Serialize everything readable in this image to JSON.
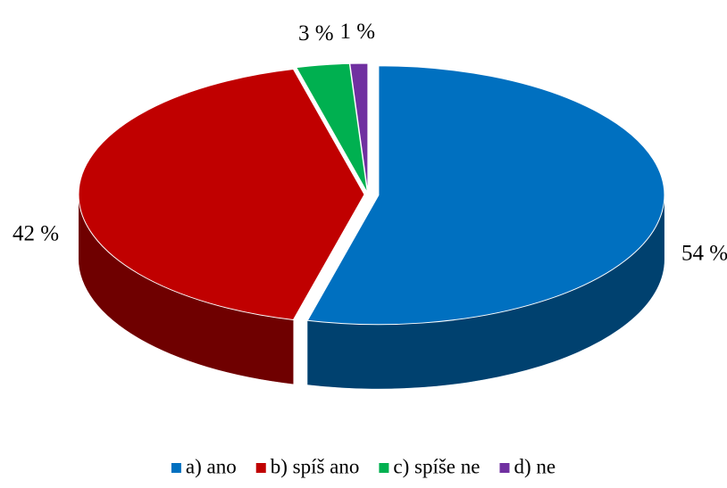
{
  "chart_data": {
    "type": "pie3d",
    "categories": [
      "a) ano",
      "b) spíš ano",
      "c) spíše ne",
      "d) ne"
    ],
    "values": [
      54,
      42,
      3,
      1
    ],
    "value_labels": [
      "54 %",
      "42 %",
      "3 %",
      "1 %"
    ],
    "colors": [
      "#0070c0",
      "#c00000",
      "#00b050",
      "#7030a0"
    ],
    "legend": "bottom"
  }
}
